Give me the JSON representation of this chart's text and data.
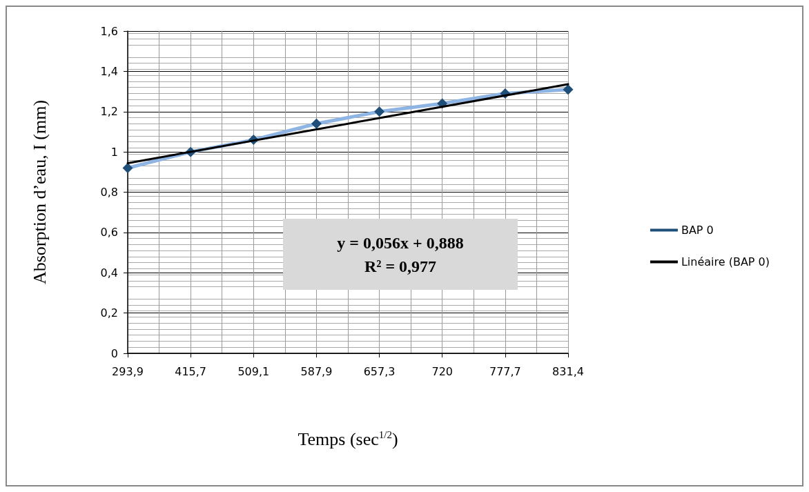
{
  "chart_data": {
    "type": "line",
    "xlabel": "Temps (sec$^{1/2}$)",
    "ylabel": "Absorption d’eau, I (mm)",
    "categories": [
      "293,9",
      "415,7",
      "509,1",
      "587,9",
      "657,3",
      "720",
      "777,7",
      "831,4"
    ],
    "series": [
      {
        "name": "BAP 0",
        "color": "#8eb4e3",
        "marker": "diamond",
        "values": [
          0.92,
          1.0,
          1.06,
          1.14,
          1.2,
          1.24,
          1.29,
          1.31
        ]
      },
      {
        "name": "Linéaire (BAP 0)",
        "color": "#000000",
        "marker": "none",
        "x": [
          "293,9",
          "831,4"
        ],
        "values": [
          0.944,
          1.336
        ]
      }
    ],
    "ylim": [
      0,
      1.6
    ],
    "yticks": [
      0,
      {
        "value": 0.2,
        "label": "0,2"
      },
      {
        "value": 0.4,
        "label": "0,4"
      },
      {
        "value": 0.6,
        "label": "0,6"
      },
      {
        "value": 0.8,
        "label": "0,8"
      },
      1,
      {
        "value": 1.2,
        "label": "1,2"
      },
      {
        "value": 1.4,
        "label": "1,4"
      },
      {
        "value": 1.6,
        "label": "1,6"
      }
    ],
    "annotations": [
      "y = 0,056x + 0,888\nR² = 0,977"
    ],
    "grid": true,
    "legend": "right"
  }
}
